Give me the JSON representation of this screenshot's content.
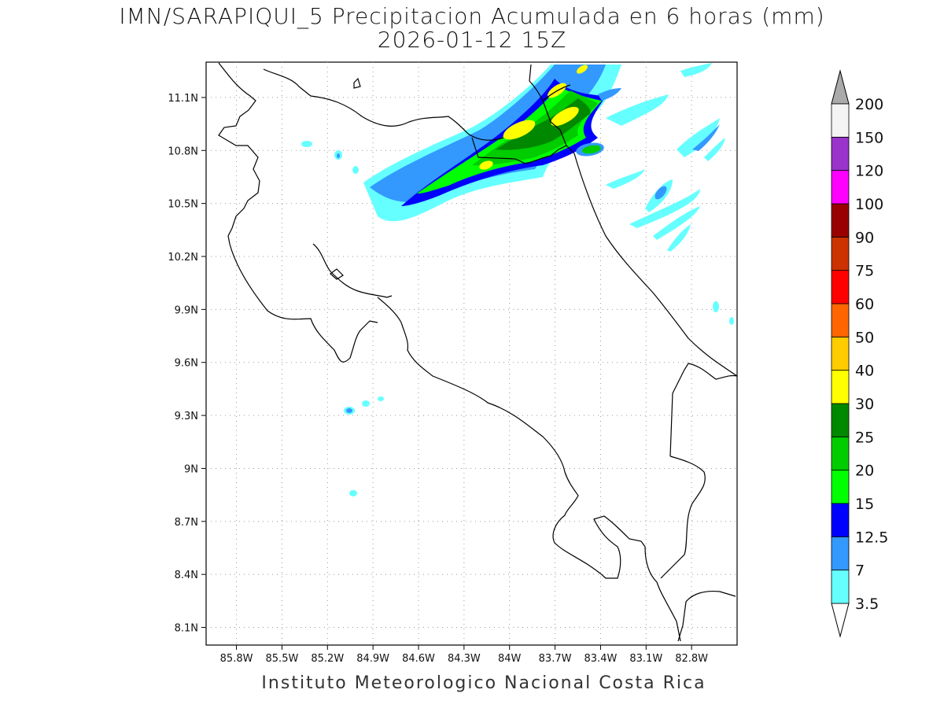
{
  "title": {
    "line1": "IMN/SARAPIQUI_5 Precipitacion Acumulada en 6 horas (mm)",
    "line2": "2026-01-12 15Z"
  },
  "footer": "Instituto Meteorologico Nacional Costa Rica",
  "map": {
    "lon_range": [
      -86.0,
      -82.5
    ],
    "lat_range": [
      8.0,
      11.3
    ],
    "lon_ticks": [
      {
        "value": -85.8,
        "label": "85.8W"
      },
      {
        "value": -85.5,
        "label": "85.5W"
      },
      {
        "value": -85.2,
        "label": "85.2W"
      },
      {
        "value": -84.9,
        "label": "84.9W"
      },
      {
        "value": -84.6,
        "label": "84.6W"
      },
      {
        "value": -84.3,
        "label": "84.3W"
      },
      {
        "value": -84.0,
        "label": "84W"
      },
      {
        "value": -83.7,
        "label": "83.7W"
      },
      {
        "value": -83.4,
        "label": "83.4W"
      },
      {
        "value": -83.1,
        "label": "83.1W"
      },
      {
        "value": -82.8,
        "label": "82.8W"
      }
    ],
    "lat_ticks": [
      {
        "value": 11.1,
        "label": "11.1N"
      },
      {
        "value": 10.8,
        "label": "10.8N"
      },
      {
        "value": 10.5,
        "label": "10.5N"
      },
      {
        "value": 10.2,
        "label": "10.2N"
      },
      {
        "value": 9.9,
        "label": "9.9N"
      },
      {
        "value": 9.6,
        "label": "9.6N"
      },
      {
        "value": 9.3,
        "label": "9.3N"
      },
      {
        "value": 9.0,
        "label": "9N"
      },
      {
        "value": 8.7,
        "label": "8.7N"
      },
      {
        "value": 8.4,
        "label": "8.4N"
      },
      {
        "value": 8.1,
        "label": "8.1N"
      }
    ],
    "grid": "dotted"
  },
  "colorbar": {
    "levels": [
      {
        "label": "3.5",
        "color": "#66ffff"
      },
      {
        "label": "7",
        "color": "#3399ff"
      },
      {
        "label": "12.5",
        "color": "#0000ff"
      },
      {
        "label": "15",
        "color": "#00ff00"
      },
      {
        "label": "20",
        "color": "#00cc00"
      },
      {
        "label": "25",
        "color": "#008800"
      },
      {
        "label": "30",
        "color": "#ffff00"
      },
      {
        "label": "40",
        "color": "#ffcc00"
      },
      {
        "label": "50",
        "color": "#ff6600"
      },
      {
        "label": "60",
        "color": "#ff0000"
      },
      {
        "label": "75",
        "color": "#cc3300"
      },
      {
        "label": "90",
        "color": "#990000"
      },
      {
        "label": "100",
        "color": "#ff00ff"
      },
      {
        "label": "120",
        "color": "#9933cc"
      },
      {
        "label": "150",
        "color": "#f4f4f4"
      },
      {
        "label": "200",
        "color": ""
      }
    ],
    "top_triangle_color": "#aaaaaa",
    "bottom_triangle_color": "#ffffff"
  }
}
